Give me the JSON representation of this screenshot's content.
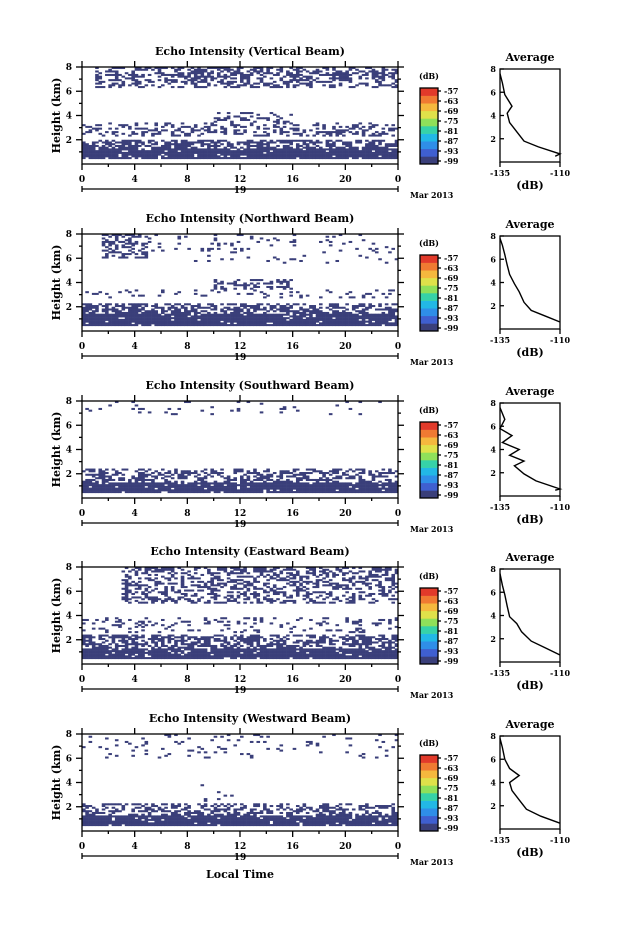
{
  "chart_data": {
    "type": "heatmap",
    "colors": {
      "low": "#3a3f7a",
      "scale": [
        "#3a3f7a",
        "#3f5fd0",
        "#2f8ee8",
        "#22b8e6",
        "#36d2a8",
        "#8fe05a",
        "#dfe14a",
        "#f5b83e",
        "#f07a32",
        "#e23a2a"
      ]
    },
    "shared": {
      "ylabel": "Height (km)",
      "y_ticks": [
        "8",
        "6",
        "4",
        "2"
      ],
      "x_ticks": [
        "0",
        "4",
        "8",
        "12",
        "16",
        "20",
        "0"
      ],
      "date_day": "19",
      "date_month": "Mar 2013",
      "colorbar_unit": "(dB)",
      "colorbar_ticks": [
        "-57",
        "-63",
        "-69",
        "-75",
        "-81",
        "-87",
        "-93",
        "-99"
      ],
      "avg_title": "Average",
      "avg_xlabel": "(dB)",
      "avg_x_ticks": [
        "-135",
        "-110"
      ],
      "avg_y_ticks": [
        "8",
        "6",
        "4",
        "2"
      ],
      "xlabel": "Local Time",
      "ylim": [
        0,
        8
      ],
      "xlim": [
        0,
        24
      ],
      "avg_xlim": [
        -135,
        -110
      ]
    },
    "panels": [
      {
        "title": "Echo Intensity (Vertical Beam)",
        "avg_x_ticks": [
          "-135",
          "-110"
        ],
        "regions": [
          [
            0.3,
            1.2,
            0,
            24,
            0.92
          ],
          [
            1.2,
            2.0,
            0,
            24,
            0.6
          ],
          [
            2.2,
            3.4,
            0,
            24,
            0.3
          ],
          [
            3.4,
            4.2,
            10,
            16,
            0.25
          ],
          [
            6.2,
            8.2,
            1,
            24,
            0.45
          ]
        ],
        "avg_profile": [
          [
            -112,
            0.5
          ],
          [
            -110,
            0.7
          ],
          [
            -119,
            1.3
          ],
          [
            -125,
            1.8
          ],
          [
            -128,
            2.6
          ],
          [
            -131,
            3.4
          ],
          [
            -132,
            4.2
          ],
          [
            -130,
            4.8
          ],
          [
            -133,
            5.8
          ],
          [
            -134,
            6.8
          ],
          [
            -135,
            7.6
          ]
        ]
      },
      {
        "title": "Echo Intensity (Northward Beam)",
        "avg_x_ticks": [
          "-135",
          "-110"
        ],
        "regions": [
          [
            0.3,
            1.3,
            0,
            24,
            0.93
          ],
          [
            1.3,
            2.2,
            0,
            24,
            0.55
          ],
          [
            2.6,
            3.4,
            0,
            24,
            0.15
          ],
          [
            3.4,
            4.2,
            10,
            16,
            0.35
          ],
          [
            6.0,
            8.2,
            1.5,
            5,
            0.4
          ],
          [
            5.5,
            8.2,
            5,
            24,
            0.06
          ]
        ],
        "avg_profile": [
          [
            -110,
            0.6
          ],
          [
            -116,
            1.1
          ],
          [
            -122,
            1.6
          ],
          [
            -125,
            2.3
          ],
          [
            -127,
            3.2
          ],
          [
            -129,
            3.9
          ],
          [
            -131,
            4.7
          ],
          [
            -132,
            5.5
          ],
          [
            -133,
            6.4
          ],
          [
            -134,
            7.2
          ],
          [
            -135,
            7.8
          ]
        ]
      },
      {
        "title": "Echo Intensity (Southward Beam)",
        "avg_x_ticks": [
          "-135",
          "-110"
        ],
        "regions": [
          [
            0.3,
            1.2,
            0,
            24,
            0.93
          ],
          [
            1.2,
            2.4,
            0,
            24,
            0.45
          ],
          [
            6.8,
            8.2,
            0,
            24,
            0.07
          ]
        ],
        "avg_profile": [
          [
            -112,
            0.5
          ],
          [
            -110,
            0.6
          ],
          [
            -120,
            1.3
          ],
          [
            -125,
            1.9
          ],
          [
            -129,
            2.6
          ],
          [
            -125,
            3.0
          ],
          [
            -131,
            3.5
          ],
          [
            -127,
            4.0
          ],
          [
            -134,
            4.6
          ],
          [
            -130,
            5.2
          ],
          [
            -135,
            5.8
          ],
          [
            -133,
            6.6
          ],
          [
            -135,
            7.6
          ]
        ]
      },
      {
        "title": "Echo Intensity (Eastward Beam)",
        "avg_x_ticks": [
          "-135",
          "-110"
        ],
        "regions": [
          [
            0.3,
            1.2,
            0,
            24,
            0.93
          ],
          [
            1.2,
            2.3,
            0,
            24,
            0.55
          ],
          [
            2.5,
            3.8,
            0,
            24,
            0.2
          ],
          [
            5.0,
            8.2,
            3,
            24,
            0.4
          ]
        ],
        "avg_profile": [
          [
            -110,
            0.6
          ],
          [
            -116,
            1.2
          ],
          [
            -122,
            1.8
          ],
          [
            -126,
            2.6
          ],
          [
            -128,
            3.3
          ],
          [
            -131,
            3.9
          ],
          [
            -132,
            4.8
          ],
          [
            -133,
            5.8
          ],
          [
            -134,
            6.6
          ],
          [
            -135,
            7.6
          ]
        ]
      },
      {
        "title": "Echo Intensity (Westward Beam)",
        "avg_x_ticks": [
          "-135",
          "-110"
        ],
        "regions": [
          [
            0.3,
            1.2,
            0,
            24,
            0.93
          ],
          [
            1.2,
            2.2,
            0,
            24,
            0.45
          ],
          [
            2.4,
            3.8,
            9,
            12,
            0.05
          ],
          [
            6.0,
            8.2,
            0,
            24,
            0.08
          ]
        ],
        "avg_profile": [
          [
            -110,
            0.5
          ],
          [
            -118,
            1.1
          ],
          [
            -124,
            1.7
          ],
          [
            -127,
            2.5
          ],
          [
            -130,
            3.3
          ],
          [
            -131,
            4.0
          ],
          [
            -127,
            4.6
          ],
          [
            -131,
            5.2
          ],
          [
            -133,
            6.0
          ],
          [
            -134,
            7.0
          ],
          [
            -135,
            7.8
          ]
        ]
      }
    ]
  }
}
